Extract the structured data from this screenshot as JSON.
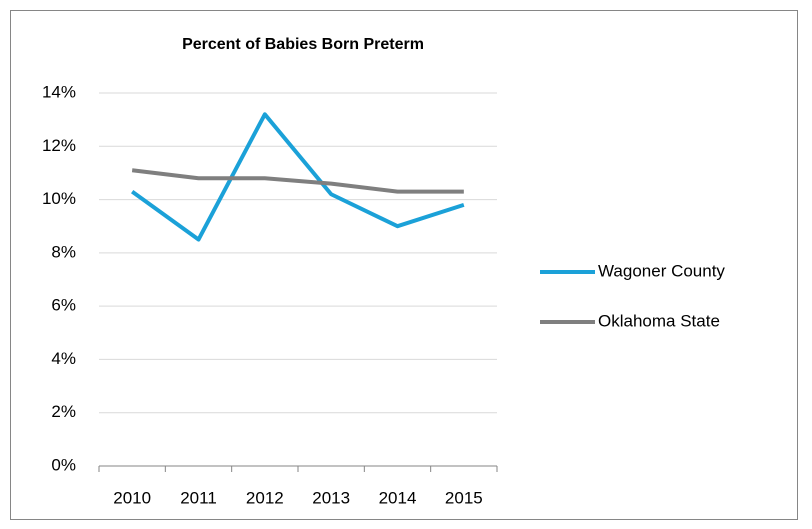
{
  "chart_data": {
    "type": "line",
    "title": "Percent of Babies Born Preterm",
    "categories": [
      "2010",
      "2011",
      "2012",
      "2013",
      "2014",
      "2015"
    ],
    "series": [
      {
        "name": "Wagoner County",
        "color": "#1ba1d8",
        "values": [
          10.3,
          8.5,
          13.2,
          10.2,
          9.0,
          9.8
        ]
      },
      {
        "name": "Oklahoma State",
        "color": "#7f7f7f",
        "values": [
          11.1,
          10.8,
          10.8,
          10.6,
          10.3,
          10.3
        ]
      }
    ],
    "ylim": [
      0,
      14
    ],
    "yticks": [
      {
        "value": 0,
        "label": "0%"
      },
      {
        "value": 2,
        "label": "2%"
      },
      {
        "value": 4,
        "label": "4%"
      },
      {
        "value": 6,
        "label": "6%"
      },
      {
        "value": 8,
        "label": "8%"
      },
      {
        "value": 10,
        "label": "10%"
      },
      {
        "value": 12,
        "label": "12%"
      },
      {
        "value": 14,
        "label": "14%"
      }
    ],
    "grid": true,
    "legend": "right"
  }
}
